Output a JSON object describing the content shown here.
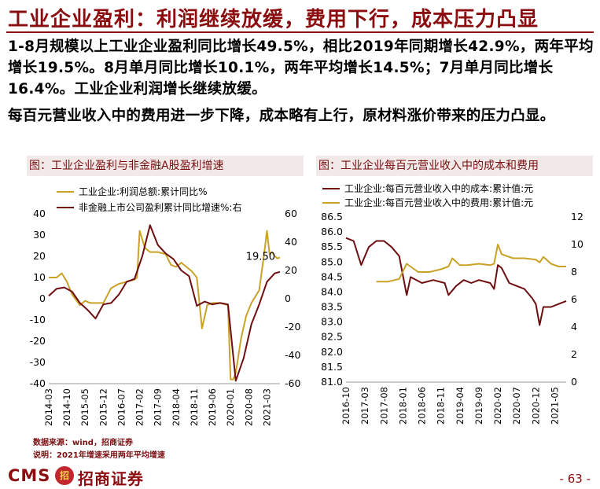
{
  "header": {
    "title": "工业企业盈利：利润继续放缓，费用下行，成本压力凸显"
  },
  "body": {
    "para1": "1-8月规模以上工业企业盈利同比增长49.5%，相比2019年同期增长42.9%，两年平均增长19.5%。8月单月同比增长10.1%，两年平均增长14.5%；7月单月同比增长16.4%。工业企业利润增长继续放缓。",
    "para2": "每百元营业收入中的费用进一步下降，成本略有上行，原材料涨价带来的压力凸显。"
  },
  "footer": {
    "source": "数据来源：wind，招商证券",
    "note": "说明：2021年增速采用两年平均增速",
    "logo_cms": "CMS",
    "logo_badge": "招",
    "logo_cn": "招商证券",
    "page": "- 63 -"
  },
  "colors": {
    "brand": "#8b0d10",
    "gold": "#c9a227",
    "dark_red": "#6e0e10"
  },
  "chart_data": [
    {
      "type": "line",
      "title": "图：工业企业盈利与非金融A股盈利增速",
      "categories": [
        "2014-03",
        "2014-10",
        "2015-05",
        "2015-12",
        "2016-07",
        "2017-02",
        "2017-09",
        "2018-04",
        "2018-11",
        "2019-06",
        "2020-01",
        "2020-08",
        "2021-03"
      ],
      "x_start": "2014-03",
      "x_end": "2021-08",
      "ylim_left": [
        -40,
        40
      ],
      "yticks_left": [
        -40,
        -30,
        -20,
        -10,
        0,
        10,
        20,
        30,
        40
      ],
      "ylim_right": [
        -60,
        60
      ],
      "yticks_right": [
        -60,
        -40,
        -20,
        0,
        20,
        40,
        60
      ],
      "annotation": {
        "text": "19.50",
        "x": "2021-08",
        "y": 19.5
      },
      "legend_position": "top-left",
      "series": [
        {
          "name": "工业企业:利润总额:累计同比%",
          "axis": "left",
          "color": "#c9a227",
          "points": [
            [
              "2014-03",
              10
            ],
            [
              "2014-06",
              10
            ],
            [
              "2014-08",
              12
            ],
            [
              "2014-10",
              8
            ],
            [
              "2014-12",
              2
            ],
            [
              "2015-03",
              -3
            ],
            [
              "2015-05",
              -1
            ],
            [
              "2015-07",
              -2
            ],
            [
              "2015-09",
              -2
            ],
            [
              "2015-12",
              -2
            ],
            [
              "2016-03",
              5
            ],
            [
              "2016-06",
              7
            ],
            [
              "2016-09",
              8
            ],
            [
              "2016-12",
              9
            ],
            [
              "2017-01",
              10
            ],
            [
              "2017-02",
              32
            ],
            [
              "2017-04",
              24
            ],
            [
              "2017-06",
              22
            ],
            [
              "2017-09",
              22
            ],
            [
              "2017-12",
              21
            ],
            [
              "2018-02",
              16
            ],
            [
              "2018-04",
              15
            ],
            [
              "2018-06",
              17
            ],
            [
              "2018-08",
              15
            ],
            [
              "2018-10",
              13
            ],
            [
              "2018-12",
              10
            ],
            [
              "2019-02",
              -14
            ],
            [
              "2019-04",
              -3
            ],
            [
              "2019-06",
              -2
            ],
            [
              "2019-09",
              -2
            ],
            [
              "2019-12",
              -3
            ],
            [
              "2020-01",
              -38
            ],
            [
              "2020-02",
              -38
            ],
            [
              "2020-03",
              -35
            ],
            [
              "2020-05",
              -19
            ],
            [
              "2020-07",
              -8
            ],
            [
              "2020-09",
              -2
            ],
            [
              "2020-12",
              4
            ],
            [
              "2021-02",
              22
            ],
            [
              "2021-03",
              32
            ],
            [
              "2021-04",
              21
            ],
            [
              "2021-05",
              22
            ],
            [
              "2021-06",
              20
            ],
            [
              "2021-07",
              19
            ],
            [
              "2021-08",
              19.5
            ]
          ]
        },
        {
          "name": "非金融上市公司盈利累计同比增速%:右",
          "axis": "right",
          "color": "#6e0e10",
          "points": [
            [
              "2014-03",
              2
            ],
            [
              "2014-06",
              7
            ],
            [
              "2014-09",
              8
            ],
            [
              "2014-12",
              5
            ],
            [
              "2015-03",
              -3
            ],
            [
              "2015-06",
              -8
            ],
            [
              "2015-09",
              -14
            ],
            [
              "2015-12",
              -4
            ],
            [
              "2016-03",
              -3
            ],
            [
              "2016-06",
              3
            ],
            [
              "2016-09",
              12
            ],
            [
              "2016-12",
              14
            ],
            [
              "2017-03",
              30
            ],
            [
              "2017-06",
              52
            ],
            [
              "2017-09",
              38
            ],
            [
              "2017-12",
              32
            ],
            [
              "2018-03",
              28
            ],
            [
              "2018-06",
              20
            ],
            [
              "2018-09",
              16
            ],
            [
              "2018-12",
              -5
            ],
            [
              "2019-03",
              -2
            ],
            [
              "2019-06",
              -4
            ],
            [
              "2019-09",
              -3
            ],
            [
              "2019-12",
              -4
            ],
            [
              "2020-03",
              -58
            ],
            [
              "2020-06",
              -42
            ],
            [
              "2020-09",
              -18
            ],
            [
              "2020-12",
              -4
            ],
            [
              "2021-03",
              12
            ],
            [
              "2021-06",
              18
            ],
            [
              "2021-08",
              19
            ]
          ]
        }
      ]
    },
    {
      "type": "line",
      "title": "图：工业企业每百元营业收入中的成本和费用",
      "categories": [
        "2016-10",
        "2017-03",
        "2017-08",
        "2018-01",
        "2018-06",
        "2018-11",
        "2019-04",
        "2019-09",
        "2020-02",
        "2020-07",
        "2020-12",
        "2021-05"
      ],
      "x_start": "2016-10",
      "x_end": "2021-08",
      "ylim_left": [
        81,
        86.5
      ],
      "yticks_left": [
        81,
        81.5,
        82,
        82.5,
        83,
        83.5,
        84,
        84.5,
        85,
        85.5,
        86,
        86.5
      ],
      "ylim_right": [
        0,
        12
      ],
      "yticks_right": [
        0,
        2,
        4,
        6,
        8,
        10,
        12
      ],
      "legend_position": "top-left",
      "series": [
        {
          "name": "工业企业:每百元营业收入中的成本:累计值:元",
          "axis": "left",
          "color": "#6e0e10",
          "points": [
            [
              "2016-10",
              85.8
            ],
            [
              "2016-12",
              85.7
            ],
            [
              "2017-02",
              84.9
            ],
            [
              "2017-04",
              85.5
            ],
            [
              "2017-06",
              85.7
            ],
            [
              "2017-08",
              85.7
            ],
            [
              "2017-10",
              85.5
            ],
            [
              "2017-12",
              85.2
            ],
            [
              "2018-02",
              83.9
            ],
            [
              "2018-03",
              84.5
            ],
            [
              "2018-06",
              84.3
            ],
            [
              "2018-09",
              84.4
            ],
            [
              "2018-12",
              84.3
            ],
            [
              "2019-01",
              83.9
            ],
            [
              "2019-03",
              84.2
            ],
            [
              "2019-05",
              84.4
            ],
            [
              "2019-07",
              84.3
            ],
            [
              "2019-09",
              84.4
            ],
            [
              "2019-12",
              84.3
            ],
            [
              "2020-01",
              84.1
            ],
            [
              "2020-02",
              84.9
            ],
            [
              "2020-03",
              84.8
            ],
            [
              "2020-05",
              84.3
            ],
            [
              "2020-07",
              84.2
            ],
            [
              "2020-09",
              84.1
            ],
            [
              "2020-11",
              83.8
            ],
            [
              "2020-12",
              83.6
            ],
            [
              "2021-01",
              82.9
            ],
            [
              "2021-02",
              83.5
            ],
            [
              "2021-04",
              83.5
            ],
            [
              "2021-06",
              83.6
            ],
            [
              "2021-08",
              83.7
            ]
          ]
        },
        {
          "name": "工业企业:每百元营业收入中的费用:累计值:元",
          "axis": "right",
          "color": "#c9a227",
          "points": [
            [
              "2017-06",
              7.3
            ],
            [
              "2017-09",
              7.3
            ],
            [
              "2017-12",
              7.5
            ],
            [
              "2018-02",
              8.6
            ],
            [
              "2018-05",
              8.0
            ],
            [
              "2018-08",
              8.0
            ],
            [
              "2018-11",
              8.2
            ],
            [
              "2019-01",
              8.4
            ],
            [
              "2019-02",
              9.0
            ],
            [
              "2019-04",
              8.5
            ],
            [
              "2019-06",
              8.5
            ],
            [
              "2019-09",
              8.6
            ],
            [
              "2019-12",
              8.5
            ],
            [
              "2020-01",
              8.6
            ],
            [
              "2020-02",
              10.0
            ],
            [
              "2020-03",
              9.3
            ],
            [
              "2020-06",
              9.0
            ],
            [
              "2020-09",
              9.0
            ],
            [
              "2020-12",
              8.9
            ],
            [
              "2021-01",
              8.7
            ],
            [
              "2021-02",
              9.1
            ],
            [
              "2021-04",
              8.6
            ],
            [
              "2021-06",
              8.4
            ],
            [
              "2021-08",
              8.4
            ]
          ]
        }
      ]
    }
  ]
}
